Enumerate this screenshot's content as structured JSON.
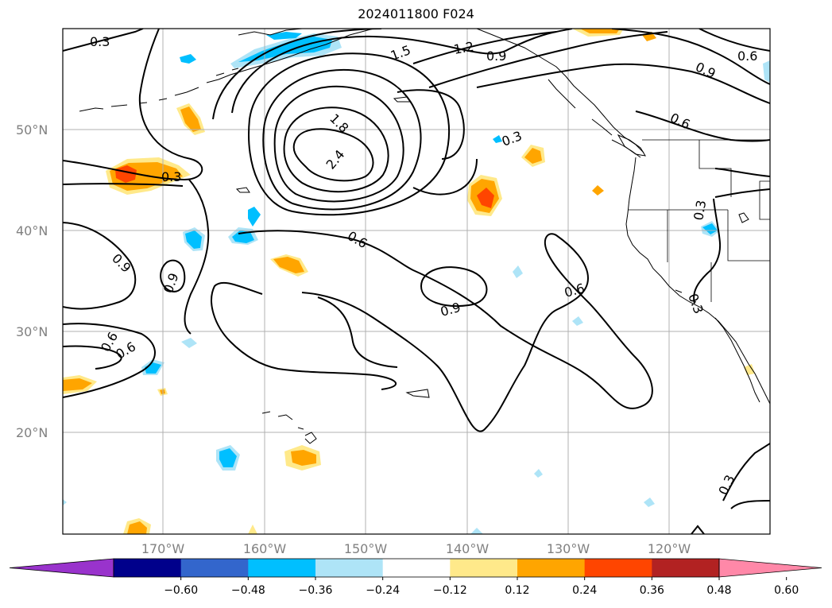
{
  "title": "2024011800 F024",
  "map": {
    "lat_labels": [
      "50°N",
      "40°N",
      "30°N",
      "20°N"
    ],
    "lon_labels": [
      "170°W",
      "160°W",
      "150°W",
      "140°W",
      "130°W",
      "120°W"
    ],
    "grid": true
  },
  "contour_labels": [
    "0.3",
    "0.3",
    "1.5",
    "1.2",
    "0.9",
    "0.6",
    "0.9",
    "1.8",
    "2.4",
    "0.6",
    "0.3",
    "0.6",
    "0.9",
    "0.9",
    "0.6",
    "0.6",
    "0.9",
    "0.6",
    "0.3",
    "0.3",
    "0.3"
  ],
  "colorbar": {
    "ticks": [
      "−0.60",
      "−0.48",
      "−0.36",
      "−0.24",
      "−0.12",
      "0.12",
      "0.24",
      "0.36",
      "0.48",
      "0.60"
    ],
    "colors": [
      "#9933cc",
      "#00008b",
      "#3366cc",
      "#00bfff",
      "#aee4f7",
      "#ffffff",
      "#ffe98a",
      "#ffa500",
      "#ff4500",
      "#b22222",
      "#ff88a8"
    ]
  }
}
